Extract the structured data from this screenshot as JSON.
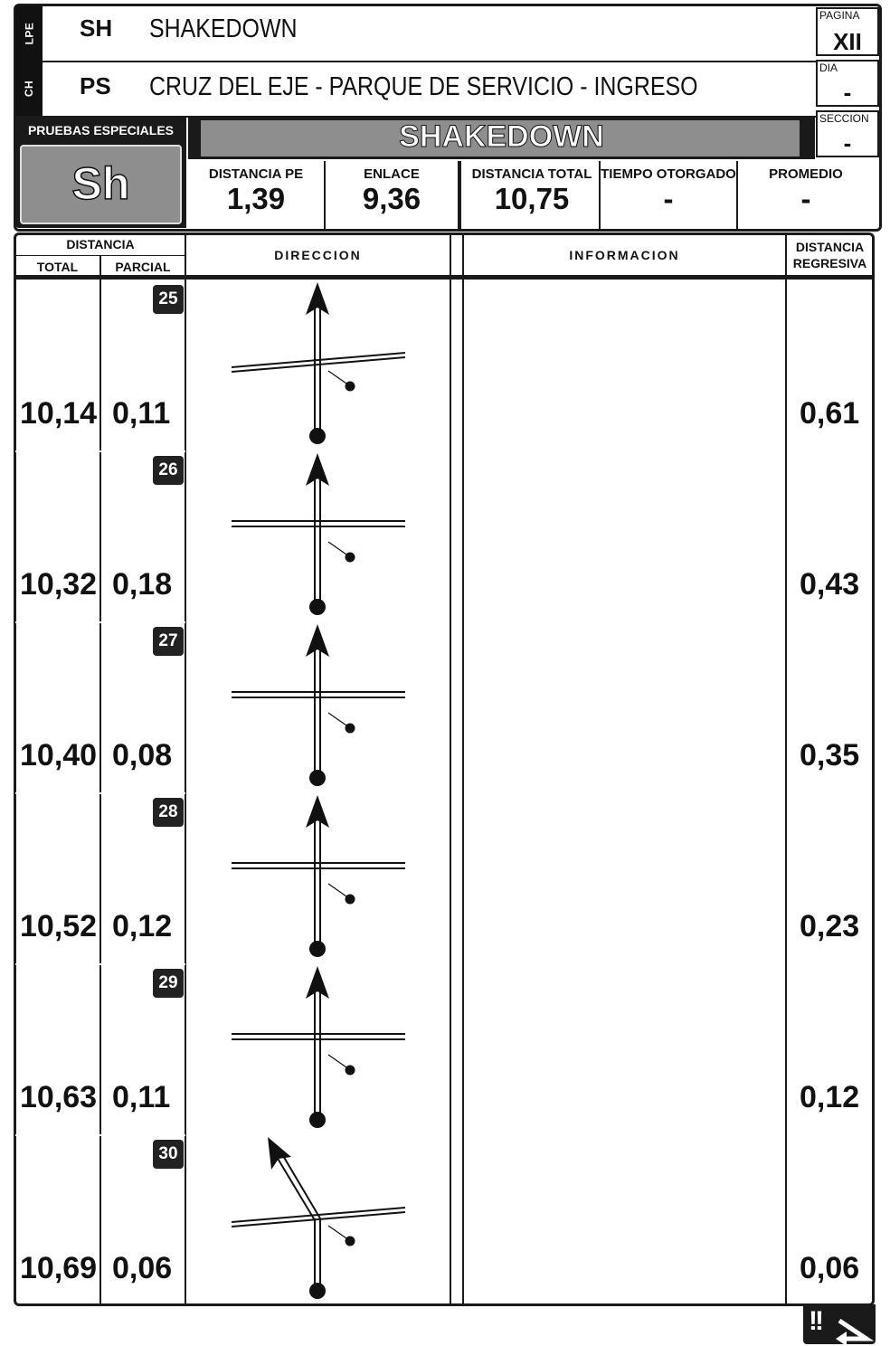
{
  "header": {
    "row1": {
      "tab": "LPE",
      "code": "SH",
      "name": "SHAKEDOWN"
    },
    "row2": {
      "tab": "CH",
      "code": "PS",
      "name": "CRUZ DEL EJE - PARQUE DE SERVICIO - INGRESO"
    },
    "pagina": {
      "label": "PAGINA",
      "value": "XII"
    },
    "dia": {
      "label": "DIA",
      "value": "-"
    },
    "seccion": {
      "label": "SECCION",
      "value": "-"
    }
  },
  "stage": {
    "section_label": "PRUEBAS ESPECIALES",
    "code": "Sh",
    "banner": "SHAKEDOWN"
  },
  "stats": [
    {
      "label": "DISTANCIA PE",
      "value": "1,39"
    },
    {
      "label": "ENLACE",
      "value": "9,36"
    },
    {
      "label": "DISTANCIA TOTAL",
      "value": "10,75"
    },
    {
      "label": "TIEMPO OTORGADO",
      "value": "-"
    },
    {
      "label": "PROMEDIO",
      "value": "-"
    }
  ],
  "columns": {
    "distancia": "DISTANCIA",
    "total": "TOTAL",
    "parcial": "PARCIAL",
    "direccion": "DIRECCION",
    "informacion": "INFORMACION",
    "regresiva_1": "DISTANCIA",
    "regresiva_2": "REGRESIVA"
  },
  "rows": [
    {
      "num": "25",
      "total": "10,14",
      "parcial": "0,11",
      "regresiva": "0,61",
      "icon": "crossroad-straight-icon"
    },
    {
      "num": "26",
      "total": "10,32",
      "parcial": "0,18",
      "regresiva": "0,43",
      "icon": "crossroad-straight-icon"
    },
    {
      "num": "27",
      "total": "10,40",
      "parcial": "0,08",
      "regresiva": "0,35",
      "icon": "crossroad-straight-icon"
    },
    {
      "num": "28",
      "total": "10,52",
      "parcial": "0,12",
      "regresiva": "0,23",
      "icon": "crossroad-straight-icon"
    },
    {
      "num": "29",
      "total": "10,63",
      "parcial": "0,11",
      "regresiva": "0,12",
      "icon": "crossroad-straight-icon"
    },
    {
      "num": "30",
      "total": "10,69",
      "parcial": "0,06",
      "regresiva": "0,06",
      "icon": "crossroad-keep-left-icon"
    }
  ],
  "footer": {
    "icon": "caution-turn-icon",
    "text": "!!"
  }
}
